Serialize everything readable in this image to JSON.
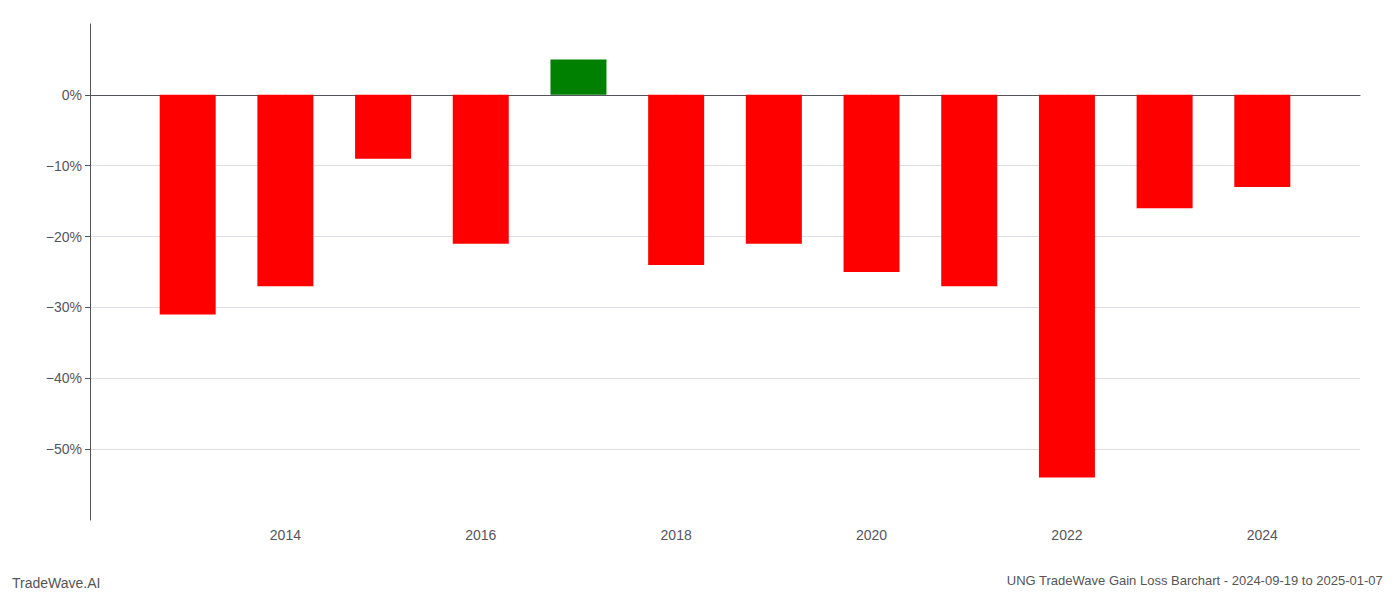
{
  "chart_data": {
    "type": "bar",
    "title": "UNG TradeWave Gain Loss Barchart - 2024-09-19 to 2025-01-07",
    "annotations": [
      "TradeWave.AI"
    ],
    "x": [
      2013,
      2014,
      2015,
      2016,
      2017,
      2018,
      2019,
      2020,
      2021,
      2022,
      2023,
      2024
    ],
    "values": [
      -31.0,
      -27.0,
      -9.0,
      -21.0,
      5.0,
      -24.0,
      -21.0,
      -25.0,
      -27.0,
      -54.0,
      -16.0,
      -13.0
    ],
    "colors": [
      "red",
      "red",
      "red",
      "red",
      "green",
      "red",
      "red",
      "red",
      "red",
      "red",
      "red",
      "red"
    ],
    "xlim": [
      2012,
      2025
    ],
    "xticks": [
      2014,
      2016,
      2018,
      2020,
      2022,
      2024
    ],
    "ylim": [
      -60,
      10
    ],
    "yticks": [
      {
        "value": 0,
        "label": "0%"
      },
      {
        "value": -10,
        "label": "−10%"
      },
      {
        "value": -20,
        "label": "−20%"
      },
      {
        "value": -30,
        "label": "−30%"
      },
      {
        "value": -40,
        "label": "−40%"
      },
      {
        "value": -50,
        "label": "−50%"
      }
    ],
    "grid": true
  }
}
